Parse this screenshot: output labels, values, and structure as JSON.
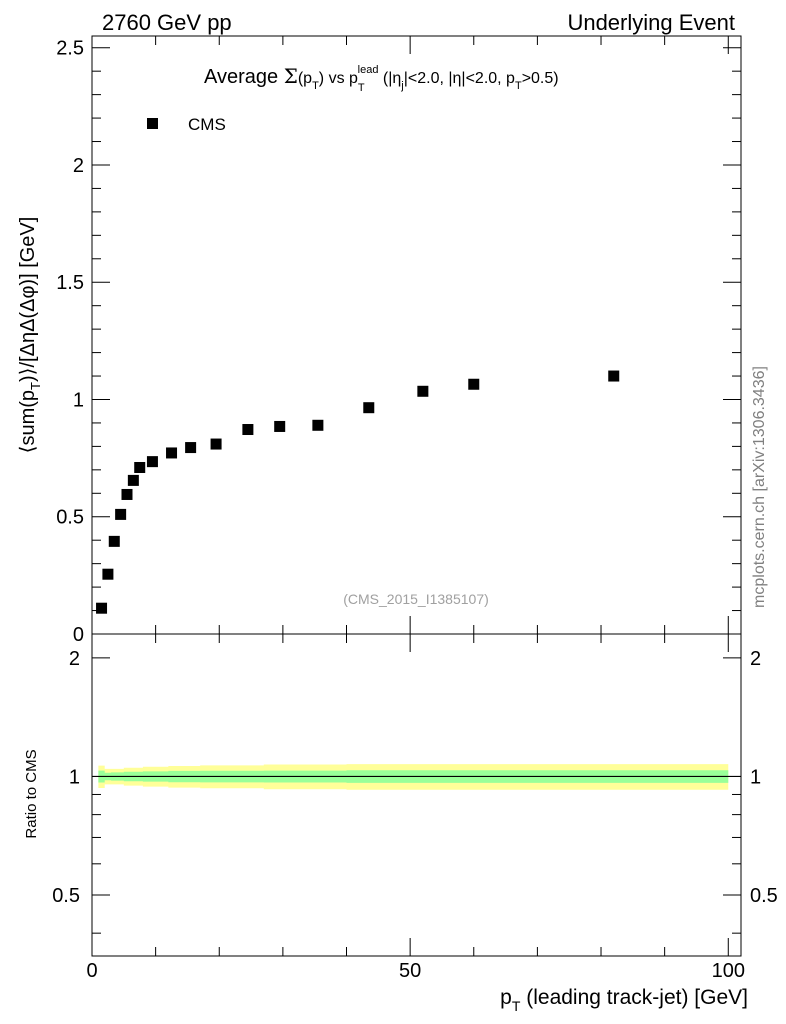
{
  "header": {
    "left": "2760 GeV pp",
    "right": "Underlying Event"
  },
  "plot_title": {
    "prefix": "Average ",
    "sigma": "Σ",
    "p1": "(p",
    "p1_sub": "T",
    "p1_close": ")",
    "vs": " vs p",
    "lead_sub": "T",
    "lead_sup": "lead",
    "cond_a": " (|η",
    "cond_a_sub": "j",
    "cond_b": "|<2.0, |η|<2.0, p",
    "cond_b_sub": "T",
    "cond_c": ">0.5)"
  },
  "upper_ylabel": "⟨sum(p_T)⟩/[ΔηΔ(Δφ)] [GeV]",
  "upper_ylabel_parts": {
    "a": "⟨sum(p",
    "sub": "T",
    "b": ")⟩/[ΔηΔ(Δφ)] [GeV]"
  },
  "legend_label": "CMS",
  "analysis_id": "(CMS_2015_I1385107)",
  "side_label": "mcplots.cern.ch [arXiv:1306.3436]",
  "lower_ylabel": "Ratio to CMS",
  "xlabel_parts": {
    "a": "p",
    "sub": "T",
    "b": " (leading track-jet) [GeV]"
  },
  "colors": {
    "marker": "#000000",
    "band_outer": "#ffff99",
    "band_inner": "#99ff99",
    "axis": "#000000",
    "analysis_id": "#a0a0a0",
    "side_label": "#808080"
  },
  "chart_data": [
    {
      "type": "scatter",
      "panel": "main",
      "series": [
        {
          "name": "CMS",
          "marker": "filled-square",
          "x": [
            1.5,
            2.5,
            3.5,
            4.5,
            5.5,
            6.5,
            7.5,
            9.5,
            12.5,
            15.5,
            19.5,
            24.5,
            29.5,
            35.5,
            43.5,
            52,
            60,
            82
          ],
          "y": [
            0.11,
            0.255,
            0.395,
            0.51,
            0.595,
            0.655,
            0.71,
            0.735,
            0.772,
            0.795,
            0.81,
            0.872,
            0.885,
            0.89,
            0.965,
            1.035,
            1.065,
            1.1
          ]
        }
      ],
      "xlim": [
        0,
        102
      ],
      "ylim": [
        0,
        2.55
      ],
      "yticks": [
        0,
        0.5,
        1,
        1.5,
        2,
        2.5
      ],
      "ytick_labels": [
        "0",
        "0.5",
        "1",
        "1.5",
        "2",
        "2.5"
      ],
      "legend": "top-left"
    },
    {
      "type": "area",
      "panel": "ratio",
      "reference_line": 1,
      "ylim": [
        0.35,
        2.3
      ],
      "yticks": [
        0.5,
        1,
        2
      ],
      "ytick_labels": [
        "0.5",
        "1",
        "2"
      ],
      "xlim": [
        0,
        102
      ],
      "xticks": [
        0,
        50,
        100
      ],
      "xtick_labels": [
        "0",
        "50",
        "100"
      ],
      "band_edges": [
        1,
        2,
        3,
        5,
        8,
        12,
        17,
        27,
        40,
        100
      ],
      "outer_band": {
        "low": [
          0.935,
          0.955,
          0.955,
          0.948,
          0.942,
          0.937,
          0.933,
          0.928,
          0.925
        ],
        "high": [
          1.065,
          1.045,
          1.045,
          1.052,
          1.058,
          1.063,
          1.067,
          1.072,
          1.075
        ]
      },
      "inner_band": {
        "low": [
          0.965,
          0.978,
          0.976,
          0.972,
          0.97,
          0.967,
          0.966,
          0.965,
          0.963
        ],
        "high": [
          1.035,
          1.022,
          1.024,
          1.028,
          1.03,
          1.033,
          1.034,
          1.035,
          1.037
        ]
      }
    }
  ]
}
